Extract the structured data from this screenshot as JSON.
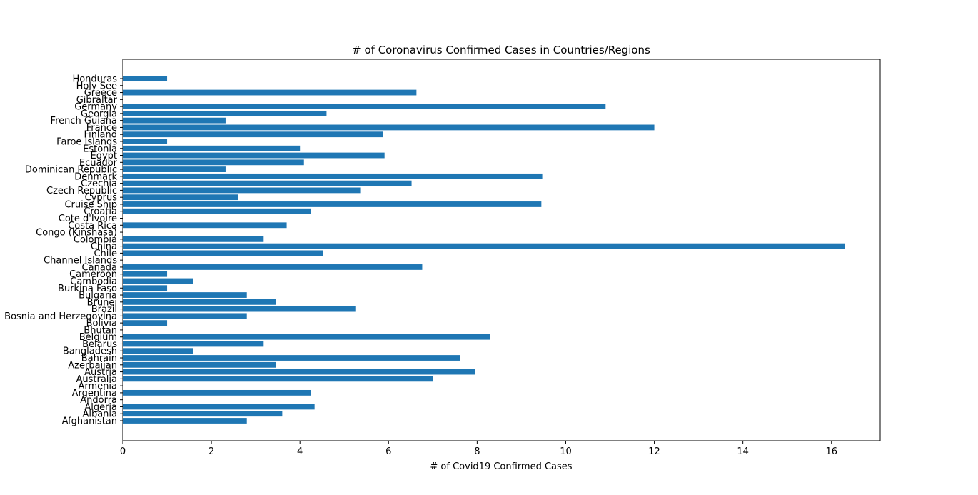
{
  "chart_data": {
    "type": "bar",
    "orientation": "horizontal",
    "title": "# of Coronavirus Confirmed Cases in Countries/Regions",
    "xlabel": "# of Covid19 Confirmed Cases",
    "ylabel": "",
    "xlim": [
      0,
      17.1
    ],
    "xticks": [
      0,
      2,
      4,
      6,
      8,
      10,
      12,
      14,
      16
    ],
    "grid": false,
    "bar_color": "#1f77b4",
    "categories": [
      "Afghanistan",
      "Albania",
      "Algeria",
      "Andorra",
      "Argentina",
      "Armenia",
      "Australia",
      "Austria",
      "Azerbaijan",
      "Bahrain",
      "Bangladesh",
      "Belarus",
      "Belgium",
      "Bhutan",
      "Bolivia",
      "Bosnia and Herzegovina",
      "Brazil",
      "Brunei",
      "Bulgaria",
      "Burkina Faso",
      "Cambodia",
      "Cameroon",
      "Canada",
      "Channel Islands",
      "Chile",
      "China",
      "Colombia",
      "Congo (Kinshasa)",
      "Costa Rica",
      "Cote d'Ivoire",
      "Croatia",
      "Cruise Ship",
      "Cyprus",
      "Czech Republic",
      "Czechia",
      "Denmark",
      "Dominican Republic",
      "Ecuador",
      "Egypt",
      "Estonia",
      "Faroe Islands",
      "Finland",
      "France",
      "French Guiana",
      "Georgia",
      "Germany",
      "Gibraltar",
      "Greece",
      "Holy See",
      "Honduras"
    ],
    "values": [
      2.8,
      3.6,
      4.33,
      0,
      4.25,
      0,
      7.0,
      7.95,
      3.46,
      7.61,
      1.59,
      3.18,
      8.3,
      0,
      1.0,
      2.8,
      5.25,
      3.46,
      2.8,
      1.0,
      1.59,
      1.0,
      6.76,
      0,
      4.52,
      16.3,
      3.18,
      0,
      3.7,
      0,
      4.25,
      9.45,
      2.6,
      5.36,
      6.52,
      9.47,
      2.32,
      4.09,
      5.91,
      4.0,
      1.0,
      5.88,
      12.0,
      2.32,
      4.6,
      10.9,
      0,
      6.63,
      0,
      1.0
    ]
  }
}
